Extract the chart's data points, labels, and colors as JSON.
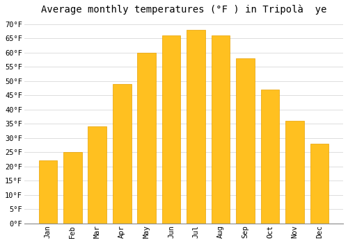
{
  "months": [
    "Jan",
    "Feb",
    "Mar",
    "Apr",
    "May",
    "Jun",
    "Jul",
    "Aug",
    "Sep",
    "Oct",
    "Nov",
    "Dec"
  ],
  "values": [
    22,
    25,
    34,
    49,
    60,
    66,
    68,
    66,
    58,
    47,
    36,
    28
  ],
  "bar_color": "#FFC020",
  "bar_edge_color": "#E8A000",
  "title": "Average monthly temperatures (°F ) in Tripolà  ye",
  "ylim": [
    0,
    72
  ],
  "ytick_labels": [
    "0°F",
    "5°F",
    "10°F",
    "15°F",
    "20°F",
    "25°F",
    "30°F",
    "35°F",
    "40°F",
    "45°F",
    "50°F",
    "55°F",
    "60°F",
    "65°F",
    "70°F"
  ],
  "ytick_values": [
    0,
    5,
    10,
    15,
    20,
    25,
    30,
    35,
    40,
    45,
    50,
    55,
    60,
    65,
    70
  ],
  "background_color": "#ffffff",
  "grid_color": "#dddddd",
  "title_fontsize": 10,
  "tick_fontsize": 7.5,
  "font_family": "monospace",
  "bar_width": 0.75
}
